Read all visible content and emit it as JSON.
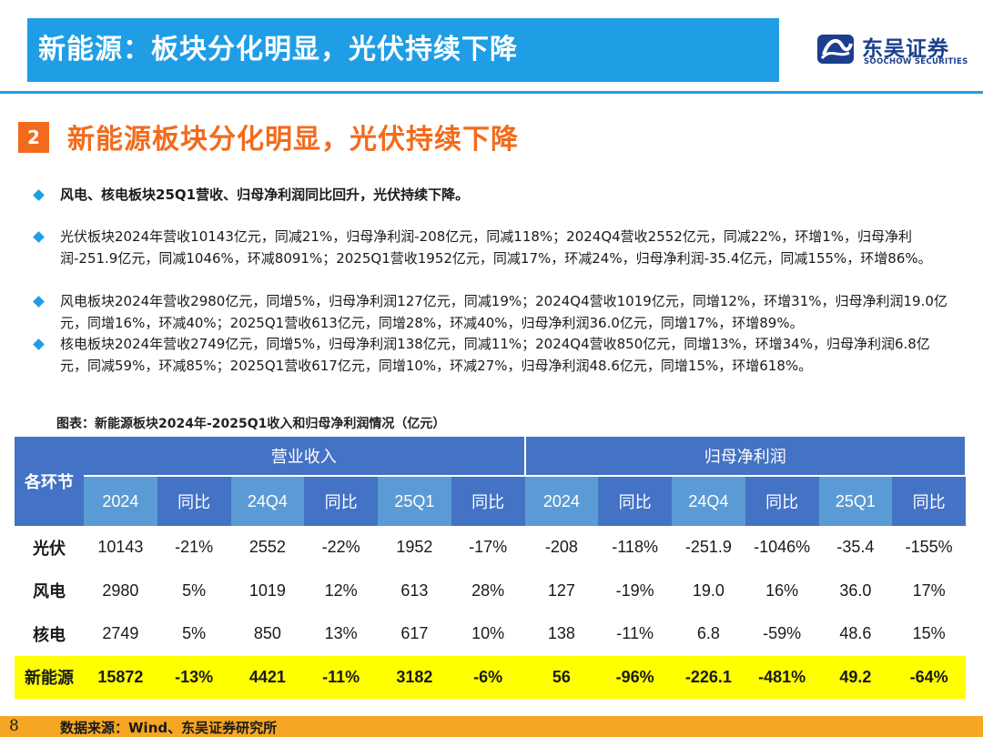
{
  "header": {
    "title": "新能源：板块分化明显，光伏持续下降"
  },
  "logo": {
    "name_cn": "东吴证券",
    "name_en": "SOOCHOW SECURITIES",
    "icon": "soochow-logo-icon"
  },
  "section": {
    "number": "2",
    "title": "新能源板块分化明显，光伏持续下降"
  },
  "bullets": [
    "风电、核电板块25Q1营收、归母净利润同比回升，光伏持续下降。",
    "光伏板块2024年营收10143亿元，同减21%，归母净利润-208亿元，同减118%；2024Q4营收2552亿元，同减22%，环增1%，归母净利润-251.9亿元，同减1046%，环减8091%；2025Q1营收1952亿元，同减17%，环减24%，归母净利润-35.4亿元，同减155%，环增86%。",
    "风电板块2024年营收2980亿元，同增5%，归母净利润127亿元，同减19%；2024Q4营收1019亿元，同增12%，环增31%，归母净利润19.0亿元，同增16%，环减40%；2025Q1营收613亿元，同增28%，环减40%，归母净利润36.0亿元，同增17%，环增89%。",
    "核电板块2024年营收2749亿元，同增5%，归母净利润138亿元，同减11%；2024Q4营收850亿元，同增13%，环增34%，归母净利润6.8亿元，同减59%，环减85%；2025Q1营收617亿元，同增10%，环减27%，归母净利润48.6亿元，同增15%，环增618%。"
  ],
  "table": {
    "caption": "图表：新能源板块2024年-2025Q1收入和归母净利润情况（亿元）",
    "corner": "各环节",
    "groups": [
      "营业收入",
      "归母净利润"
    ],
    "subheaders": [
      "2024",
      "同比",
      "24Q4",
      "同比",
      "25Q1",
      "同比",
      "2024",
      "同比",
      "24Q4",
      "同比",
      "25Q1",
      "同比"
    ],
    "rows": [
      {
        "label": "光伏",
        "values": [
          "10143",
          "-21%",
          "2552",
          "-22%",
          "1952",
          "-17%",
          "-208",
          "-118%",
          "-251.9",
          "-1046%",
          "-35.4",
          "-155%"
        ]
      },
      {
        "label": "风电",
        "values": [
          "2980",
          "5%",
          "1019",
          "12%",
          "613",
          "28%",
          "127",
          "-19%",
          "19.0",
          "16%",
          "36.0",
          "17%"
        ]
      },
      {
        "label": "核电",
        "values": [
          "2749",
          "5%",
          "850",
          "13%",
          "617",
          "10%",
          "138",
          "-11%",
          "6.8",
          "-59%",
          "48.6",
          "15%"
        ]
      }
    ],
    "total": {
      "label": "新能源",
      "values": [
        "15872",
        "-13%",
        "4421",
        "-11%",
        "3182",
        "-6%",
        "56",
        "-96%",
        "-226.1",
        "-481%",
        "49.2",
        "-64%"
      ]
    }
  },
  "footer": {
    "page_number": "8",
    "source": "数据来源：Wind、东吴证券研究所"
  },
  "colors": {
    "header_blue": "#1f9ee6",
    "accent_orange": "#f26b1d",
    "table_dark": "#4472c4",
    "table_light": "#5b9bd5",
    "highlight": "#ffff00",
    "footer": "#f5a623"
  }
}
